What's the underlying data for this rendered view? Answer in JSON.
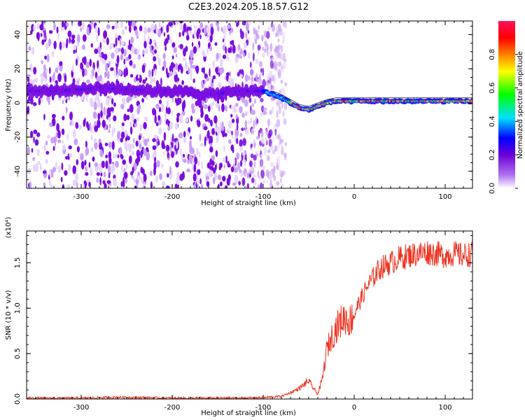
{
  "title": "C2E3.2024.205.18.57.G12",
  "colors": {
    "trace": "#ee3322",
    "ridge_line": "#444444",
    "axes": "#000000"
  },
  "chart_data": [
    {
      "type": "heatmap",
      "xlabel": "Height of straight line (km)",
      "ylabel": "Frequency (Hz)",
      "xlim": [
        -360,
        130
      ],
      "ylim": [
        -50,
        48
      ],
      "x_ticks": [
        -300,
        -200,
        -100,
        0,
        100
      ],
      "x_tick_labels": [
        "-300",
        "-200",
        "-100",
        "0",
        "100"
      ],
      "y_ticks": [
        -40,
        -20,
        0,
        20,
        40
      ],
      "y_tick_labels": [
        "-40",
        "-20",
        "0",
        "20",
        "40"
      ],
      "colorbar": {
        "label": "Normalized spectral amplitude",
        "range": [
          0.0,
          1.0
        ],
        "ticks": [
          0.0,
          0.2,
          0.4,
          0.6,
          0.8
        ],
        "tick_labels": [
          "0.0",
          "0.2",
          "0.4",
          "0.6",
          "0.8"
        ],
        "colormap": [
          "#ffffff",
          "#b070f0",
          "#6a00d8",
          "#0000ff",
          "#00e0ff",
          "#00ff00",
          "#ffff00",
          "#ff8000",
          "#ff0000",
          "#ff1060"
        ]
      },
      "ridge": {
        "x": [
          -360,
          -330,
          -300,
          -280,
          -250,
          -220,
          -200,
          -180,
          -160,
          -140,
          -120,
          -100,
          -90,
          -80,
          -70,
          -60,
          -50,
          -40,
          -30,
          -20,
          -10,
          0,
          20,
          40,
          60,
          80,
          100,
          130
        ],
        "y": [
          7,
          7,
          8,
          9,
          8,
          7,
          7,
          6,
          5,
          6,
          7,
          7,
          5,
          3,
          0,
          -3,
          -4,
          -2,
          0,
          1,
          1,
          1,
          1,
          1,
          1,
          1,
          1,
          1
        ]
      },
      "noise_extent_x": [
        -360,
        -85
      ]
    },
    {
      "type": "line",
      "xlabel": "Height of straight line (km)",
      "ylabel": "SNR (10 * v/v)",
      "scale_label": "(x10⁴)",
      "xlim": [
        -360,
        130
      ],
      "ylim": [
        0,
        1.85
      ],
      "x_ticks": [
        -300,
        -200,
        -100,
        0,
        100
      ],
      "x_tick_labels": [
        "-300",
        "-200",
        "-100",
        "0",
        "100"
      ],
      "y_ticks": [
        0,
        0.5,
        1.0,
        1.5
      ],
      "y_tick_labels": [
        "0.0",
        "0.5",
        "1.0",
        "1.5"
      ],
      "series": [
        {
          "x": [
            -360,
            -300,
            -260,
            -200,
            -150,
            -120,
            -100,
            -80,
            -70,
            -60,
            -50,
            -45,
            -40,
            -35,
            -30,
            -25,
            -20,
            -15,
            -10,
            -5,
            0,
            5,
            10,
            15,
            20,
            25,
            30,
            40,
            50,
            60,
            70,
            80,
            90,
            100,
            110,
            120,
            130
          ],
          "y": [
            0.01,
            0.01,
            0.02,
            0.01,
            0.01,
            0.01,
            0.015,
            0.03,
            0.07,
            0.12,
            0.2,
            0.12,
            0.05,
            0.22,
            0.55,
            0.68,
            0.78,
            0.85,
            0.9,
            0.85,
            0.95,
            1.05,
            1.15,
            1.25,
            1.32,
            1.4,
            1.45,
            1.5,
            1.55,
            1.58,
            1.6,
            1.62,
            1.6,
            1.58,
            1.6,
            1.58,
            1.6
          ]
        }
      ]
    }
  ]
}
